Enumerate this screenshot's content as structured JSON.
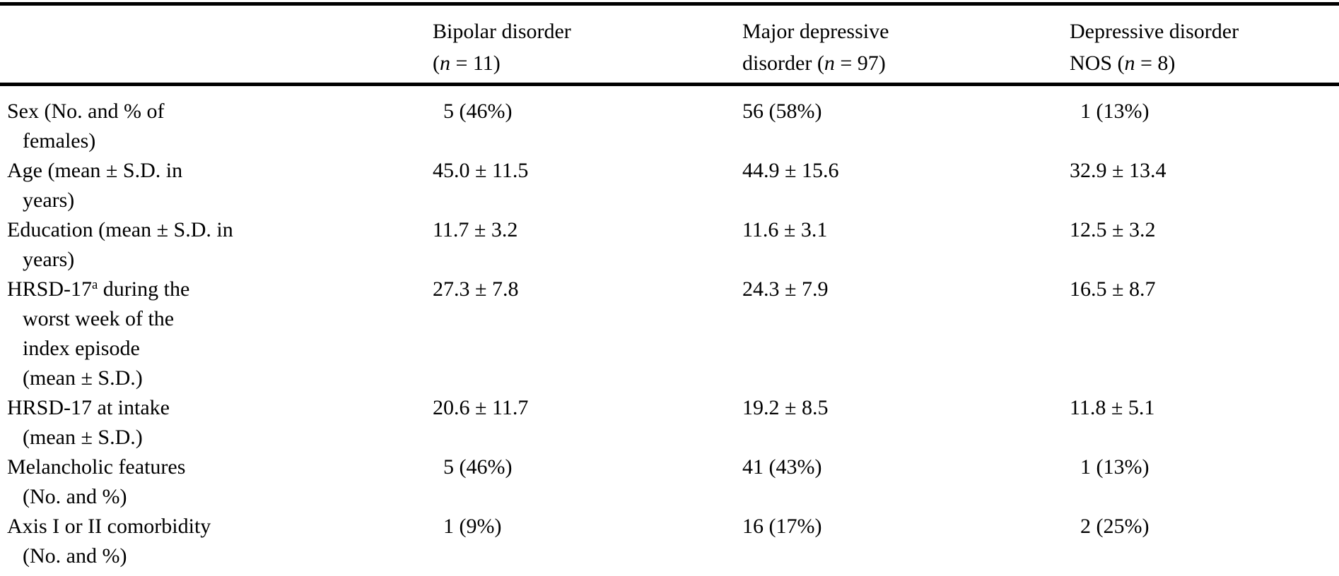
{
  "page": {
    "background_color": "#ffffff",
    "text_color": "#000000",
    "rule_color": "#000000"
  },
  "table": {
    "columns": [
      {
        "title": "Bipolar disorder\n",
        "n_open": "(",
        "n_var": "n",
        "n_rest": " = 11)"
      },
      {
        "title": "Major depressive\ndisorder ",
        "n_open": "(",
        "n_var": "n",
        "n_rest": " = 97)"
      },
      {
        "title": "Depressive disorder\nNOS ",
        "n_open": "(",
        "n_var": "n",
        "n_rest": " = 8)"
      }
    ],
    "rows": [
      {
        "label": "Sex (No. and % of\nfemales)",
        "values": [
          "  5 (46%)",
          "56 (58%)",
          "  1 (13%)"
        ]
      },
      {
        "label": "Age (mean ± S.D. in\nyears)",
        "values": [
          "45.0 ± 11.5",
          "44.9 ± 15.6",
          "32.9 ± 13.4"
        ]
      },
      {
        "label": "Education (mean ± S.D. in\nyears)",
        "values": [
          "11.7 ± 3.2",
          "11.6 ± 3.1",
          "12.5 ± 3.2"
        ]
      },
      {
        "label_pre": "HRSD-17",
        "label_sup": "a",
        "label_rest": " during the\nworst week of the\nindex episode\n(mean ± S.D.)",
        "values": [
          "27.3 ± 7.8",
          "24.3 ± 7.9",
          "16.5 ± 8.7"
        ]
      },
      {
        "label": "HRSD-17 at intake\n(mean ± S.D.)",
        "values": [
          "20.6 ± 11.7",
          "19.2 ± 8.5",
          "11.8 ± 5.1"
        ]
      },
      {
        "label": "Melancholic features\n(No. and %)",
        "values": [
          "  5 (46%)",
          "41 (43%)",
          "  1 (13%)"
        ]
      },
      {
        "label": "Axis I or II comorbidity\n(No. and %)",
        "values": [
          "  1 (9%)",
          "16 (17%)",
          "  2 (25%)"
        ]
      }
    ]
  }
}
